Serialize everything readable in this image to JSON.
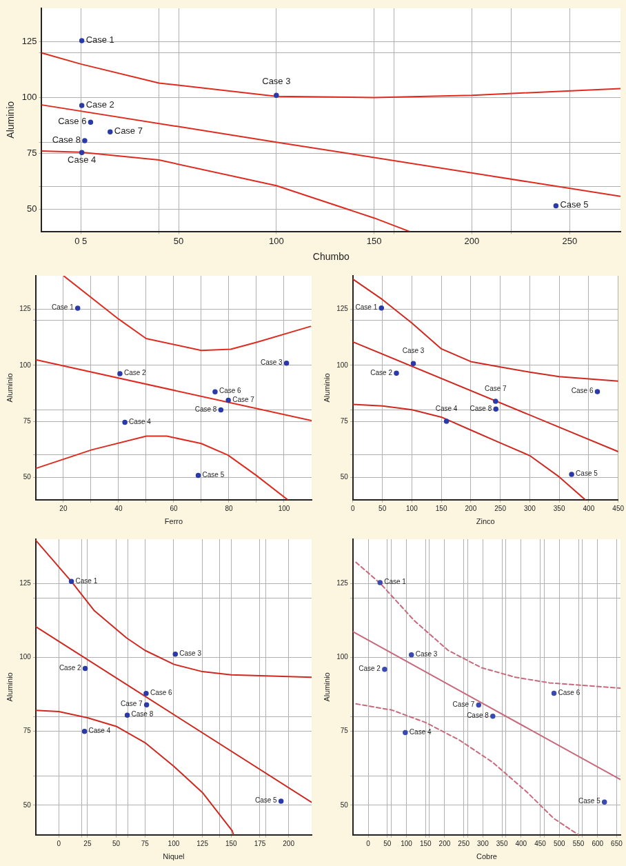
{
  "chart_data": [
    {
      "type": "scatter",
      "xlabel": "Chumbo",
      "ylabel": "Aluminio",
      "xlim": [
        -20,
        276
      ],
      "ylim": [
        40,
        140
      ],
      "grid": true,
      "marker": "circle",
      "xticks": [
        {
          "value": 0,
          "label": "0 5"
        },
        {
          "value": 40,
          "label": null
        },
        50,
        100,
        150,
        {
          "value": 160,
          "label": null
        },
        200,
        {
          "value": 220,
          "label": null
        },
        250
      ],
      "yticks": [
        50,
        {
          "value": 60,
          "label": null
        },
        75,
        {
          "value": 80,
          "label": null
        },
        100,
        {
          "value": 120,
          "label": null
        },
        125
      ],
      "series": [
        {
          "type": "scatter",
          "color": "#2a3aa8",
          "x": [
            0.5,
            0.5,
            100,
            0.5,
            243,
            5,
            15,
            2
          ],
          "values": [
            125.5,
            96.4,
            101,
            75.3,
            51.5,
            88.9,
            84.6,
            80.7
          ],
          "value_labels": [
            "Case 1",
            "Case 2",
            "Case 3",
            "Case 4",
            "Case 5",
            "Case 6",
            "Case 7",
            "Case 8"
          ]
        },
        {
          "type": "line",
          "color": "#e02a1e",
          "marker": "none",
          "x": [
            -20,
            100,
            276
          ],
          "values": [
            96.7,
            80,
            55.7
          ]
        },
        {
          "type": "line",
          "color": "#e02a1e",
          "marker": "none",
          "x": [
            -20,
            0,
            40,
            100,
            150,
            200,
            276
          ],
          "values": [
            120,
            115,
            106.5,
            100.5,
            100,
            101,
            104
          ]
        },
        {
          "type": "line",
          "color": "#e02a1e",
          "marker": "none",
          "x": [
            -20,
            0,
            40,
            100,
            150,
            168
          ],
          "values": [
            76,
            75.5,
            72,
            60.5,
            46,
            40
          ]
        }
      ]
    },
    {
      "type": "scatter",
      "xlabel": "Ferro",
      "ylabel": "Aluminio",
      "xlim": [
        10,
        110
      ],
      "ylim": [
        40,
        140
      ],
      "grid": true,
      "marker": "circle",
      "xticks": [
        20,
        {
          "value": 30,
          "label": null
        },
        40,
        {
          "value": 50,
          "label": null
        },
        60,
        {
          "value": 70,
          "label": null
        },
        80,
        {
          "value": 90,
          "label": null
        },
        100
      ],
      "yticks": [
        50,
        {
          "value": 60,
          "label": null
        },
        75,
        {
          "value": 80,
          "label": null
        },
        100,
        {
          "value": 120,
          "label": null
        },
        125
      ],
      "series": [
        {
          "type": "scatter",
          "color": "#2a3aa8",
          "x": [
            25.2,
            40.5,
            100.9,
            42.3,
            68.9,
            75,
            79.8,
            77.1
          ],
          "values": [
            125.5,
            96.3,
            101,
            74.6,
            50.9,
            88.2,
            84.4,
            80.1
          ],
          "value_labels": [
            "Case 1",
            "Case 2",
            "Case 3",
            "Case 4",
            "Case 5",
            "Case 6",
            "Case 7",
            "Case 8"
          ]
        },
        {
          "type": "line",
          "color": "#e02a1e",
          "marker": "none",
          "x": [
            10,
            110
          ],
          "values": [
            102.5,
            75.3
          ]
        },
        {
          "type": "line",
          "color": "#e02a1e",
          "marker": "none",
          "x": [
            20.3,
            40,
            50,
            70,
            80.7,
            90,
            109.6
          ],
          "values": [
            139.8,
            120.7,
            112,
            106.7,
            107.2,
            110.3,
            117.4
          ]
        },
        {
          "type": "line",
          "color": "#e02a1e",
          "marker": "none",
          "x": [
            10,
            30.3,
            50.1,
            57.5,
            70,
            79.7,
            89.9,
            101.3
          ],
          "values": [
            54,
            62.3,
            68.4,
            68.4,
            65.1,
            59.9,
            50.9,
            40
          ]
        }
      ]
    },
    {
      "type": "scatter",
      "xlabel": "Zinco",
      "ylabel": "Aluminio",
      "xlim": [
        0,
        450
      ],
      "ylim": [
        40,
        140
      ],
      "grid": true,
      "marker": "circle",
      "xticks": [
        0,
        50,
        100,
        150,
        200,
        250,
        300,
        350,
        400,
        450
      ],
      "yticks": [
        50,
        {
          "value": 60,
          "label": null
        },
        75,
        {
          "value": 80,
          "label": null
        },
        100,
        {
          "value": 120,
          "label": null
        },
        125
      ],
      "series": [
        {
          "type": "scatter",
          "color": "#2a3aa8",
          "x": [
            48.4,
            73.8,
            102.5,
            158.7,
            371,
            414.7,
            242,
            242.5
          ],
          "values": [
            125.6,
            96.5,
            100.8,
            75,
            51.3,
            88.3,
            84,
            80.5
          ],
          "value_labels": [
            "Case 1",
            "Case 2",
            "Case 3",
            "Case 4",
            "Case 5",
            "Case 6",
            "Case 7",
            "Case 8"
          ]
        },
        {
          "type": "line",
          "color": "#d0281e",
          "marker": "none",
          "x": [
            0,
            450
          ],
          "values": [
            110.5,
            61.5
          ]
        },
        {
          "type": "line",
          "color": "#d0281e",
          "marker": "none",
          "x": [
            0,
            50,
            100,
            150,
            200,
            250,
            300,
            350,
            450
          ],
          "values": [
            138.5,
            129.4,
            118.9,
            107.4,
            101.7,
            99.3,
            97,
            95,
            93
          ]
        },
        {
          "type": "line",
          "color": "#d0281e",
          "marker": "none",
          "x": [
            0,
            50,
            100,
            150,
            200,
            250,
            300,
            350,
            394
          ],
          "values": [
            82.6,
            81.9,
            80.2,
            76.9,
            71.1,
            65.4,
            59.7,
            50.2,
            40
          ]
        }
      ]
    },
    {
      "type": "scatter",
      "xlabel": "Niquel",
      "ylabel": "Aluminio",
      "xlim": [
        -20,
        220
      ],
      "ylim": [
        40,
        140
      ],
      "grid": true,
      "marker": "circle",
      "xticks": [
        0,
        {
          "value": 20,
          "label": null
        },
        25,
        50,
        {
          "value": 60,
          "label": null
        },
        75,
        100,
        125,
        {
          "value": 140,
          "label": null
        },
        150,
        175,
        {
          "value": 180,
          "label": null
        },
        200
      ],
      "yticks": [
        50,
        {
          "value": 60,
          "label": null
        },
        75,
        {
          "value": 80,
          "label": null
        },
        100,
        {
          "value": 120,
          "label": null
        },
        125
      ],
      "series": [
        {
          "type": "scatter",
          "color": "#2a3aa8",
          "x": [
            11,
            23,
            101.4,
            22.4,
            193.4,
            76,
            76.4,
            59.6
          ],
          "values": [
            125.7,
            96.3,
            101.1,
            75,
            51.4,
            87.8,
            84,
            80.5
          ],
          "value_labels": [
            "Case 1",
            "Case 2",
            "Case 3",
            "Case 4",
            "Case 5",
            "Case 6",
            "Case 7",
            "Case 8"
          ]
        },
        {
          "type": "line",
          "color": "#d0281e",
          "marker": "none",
          "x": [
            -20,
            220
          ],
          "values": [
            110.4,
            51
          ]
        },
        {
          "type": "line",
          "color": "#d0281e",
          "marker": "none",
          "x": [
            -20,
            11,
            31,
            59,
            75,
            100,
            125,
            150,
            220
          ],
          "values": [
            139.6,
            125.7,
            115.8,
            106.6,
            102.4,
            97.7,
            95.2,
            94.1,
            93.3
          ]
        },
        {
          "type": "line",
          "color": "#d0281e",
          "marker": "none",
          "x": [
            -20,
            0,
            25,
            50,
            75,
            100,
            125,
            151,
            152
          ],
          "values": [
            82.1,
            81.7,
            79.6,
            76.7,
            71.2,
            63.2,
            54.3,
            41.3,
            40
          ]
        }
      ]
    },
    {
      "type": "scatter",
      "xlabel": "Cobre",
      "ylabel": "Aluminio",
      "xlim": [
        -40,
        660
      ],
      "ylim": [
        40,
        140
      ],
      "grid": true,
      "marker": "circle",
      "xticks": [
        0,
        50,
        {
          "value": 60,
          "label": null
        },
        100,
        150,
        {
          "value": 160,
          "label": null
        },
        200,
        250,
        {
          "value": 260,
          "label": null
        },
        300,
        350,
        {
          "value": 360,
          "label": null
        },
        400,
        450,
        {
          "value": 460,
          "label": null
        },
        500,
        550,
        {
          "value": 560,
          "label": null
        },
        600,
        650
      ],
      "yticks": [
        50,
        {
          "value": 60,
          "label": null
        },
        75,
        {
          "value": 80,
          "label": null
        },
        100,
        {
          "value": 120,
          "label": null
        },
        125
      ],
      "series": [
        {
          "type": "scatter",
          "color": "#3a4ab0",
          "x": [
            31,
            43,
            113,
            97,
            618,
            486,
            289,
            326
          ],
          "values": [
            125.3,
            96,
            100.9,
            74.6,
            51.1,
            87.9,
            83.9,
            80.1
          ],
          "value_labels": [
            "Case 1",
            "Case 2",
            "Case 3",
            "Case 4",
            "Case 5",
            "Case 6",
            "Case 7",
            "Case 8"
          ]
        },
        {
          "type": "line",
          "color": "#c8687a",
          "marker": "none",
          "x": [
            -40,
            660
          ],
          "values": [
            108.7,
            58.7
          ]
        },
        {
          "type": "line",
          "color": "#c8687a",
          "marker": "none",
          "line_style": "dashed",
          "x": [
            -32,
            32,
            121,
            209,
            297,
            385,
            474,
            660
          ],
          "values": [
            132.2,
            125,
            112.4,
            102.4,
            96.5,
            93.3,
            91.4,
            89.6
          ]
        },
        {
          "type": "line",
          "color": "#c8687a",
          "marker": "none",
          "line_style": "dashed",
          "x": [
            -32,
            62,
            150,
            238,
            326,
            415,
            485,
            550
          ],
          "values": [
            84.3,
            82.2,
            78,
            72.1,
            64.5,
            54.5,
            45.6,
            40
          ]
        }
      ]
    }
  ]
}
